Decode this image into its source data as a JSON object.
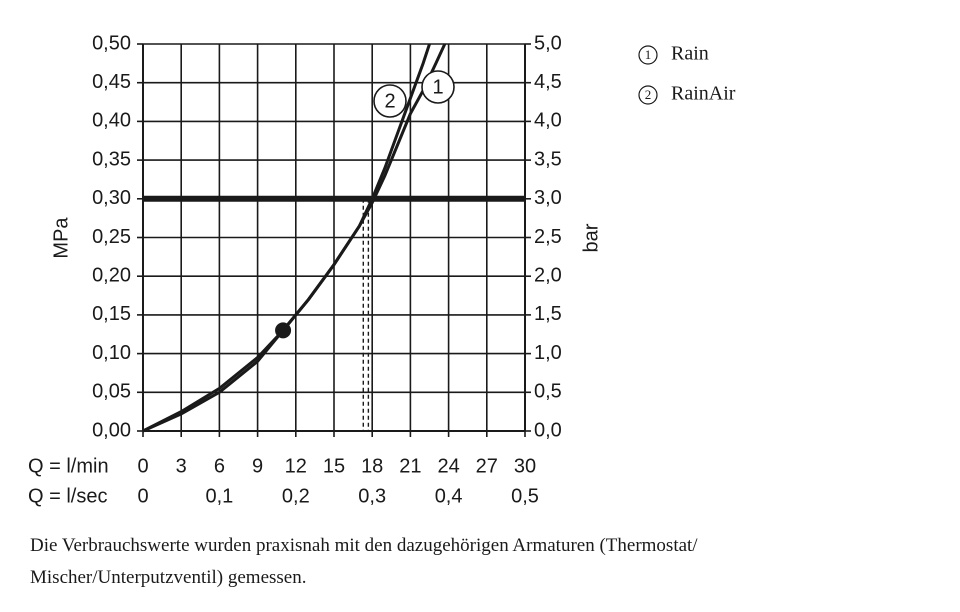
{
  "chart_data": {
    "type": "line",
    "x_label": "Q = l/min",
    "x2_label": "Q = l/sec",
    "y_label": "MPa",
    "y2_label": "bar",
    "xlim": [
      0,
      30
    ],
    "xticks": [
      0,
      3,
      6,
      9,
      12,
      15,
      18,
      21,
      24,
      27,
      30
    ],
    "x2lim": [
      0,
      0.5
    ],
    "x2ticks": [
      0,
      {
        "value": 0.1,
        "label": "0,1"
      },
      {
        "value": 0.2,
        "label": "0,2"
      },
      {
        "value": 0.3,
        "label": "0,3"
      },
      {
        "value": 0.4,
        "label": "0,4"
      },
      {
        "value": 0.5,
        "label": "0,5"
      }
    ],
    "ylim": [
      0,
      0.5
    ],
    "yticks": [
      {
        "value": 0,
        "label": "0,00"
      },
      {
        "value": 0.05,
        "label": "0,05"
      },
      {
        "value": 0.1,
        "label": "0,10"
      },
      {
        "value": 0.15,
        "label": "0,15"
      },
      {
        "value": 0.2,
        "label": "0,20"
      },
      {
        "value": 0.25,
        "label": "0,25"
      },
      {
        "value": 0.3,
        "label": "0,30"
      },
      {
        "value": 0.35,
        "label": "0,35"
      },
      {
        "value": 0.4,
        "label": "0,40"
      },
      {
        "value": 0.45,
        "label": "0,45"
      },
      {
        "value": 0.5,
        "label": "0,50"
      }
    ],
    "y2lim": [
      0,
      5
    ],
    "y2ticks": [
      {
        "value": 0,
        "label": "0,0"
      },
      {
        "value": 0.5,
        "label": "0,5"
      },
      {
        "value": 1,
        "label": "1,0"
      },
      {
        "value": 1.5,
        "label": "1,5"
      },
      {
        "value": 2,
        "label": "2,0"
      },
      {
        "value": 2.5,
        "label": "2,5"
      },
      {
        "value": 3,
        "label": "3,0"
      },
      {
        "value": 3.5,
        "label": "3,5"
      },
      {
        "value": 4,
        "label": "4,0"
      },
      {
        "value": 4.5,
        "label": "4,5"
      },
      {
        "value": 5,
        "label": "5,0"
      }
    ],
    "grid": true,
    "color": "#1a1a1a",
    "reference_line": 0.3,
    "dashed_x": [
      17.3,
      17.7
    ],
    "marker_point": {
      "x": 11,
      "y": 0.13
    },
    "series": [
      {
        "name": "Rain",
        "label": "1",
        "x": [
          0,
          3,
          6,
          9,
          11,
          13,
          15,
          17,
          18,
          19,
          20,
          21,
          22,
          23,
          23.7
        ],
        "values": [
          0,
          0.022,
          0.05,
          0.09,
          0.13,
          0.17,
          0.215,
          0.265,
          0.295,
          0.33,
          0.37,
          0.41,
          0.44,
          0.475,
          0.5
        ]
      },
      {
        "name": "RainAir",
        "label": "2",
        "x": [
          0,
          3,
          6,
          9,
          11,
          13,
          15,
          17,
          18,
          19,
          20,
          21,
          22,
          22.5
        ],
        "values": [
          0,
          0.025,
          0.055,
          0.095,
          0.13,
          0.17,
          0.215,
          0.265,
          0.3,
          0.34,
          0.385,
          0.43,
          0.475,
          0.5
        ]
      }
    ],
    "caption": "Die Verbrauchswerte wurden praxisnah mit den dazugehörigen Armaturen (Thermostat/ Mischer/Unterputzventil) gemessen."
  }
}
